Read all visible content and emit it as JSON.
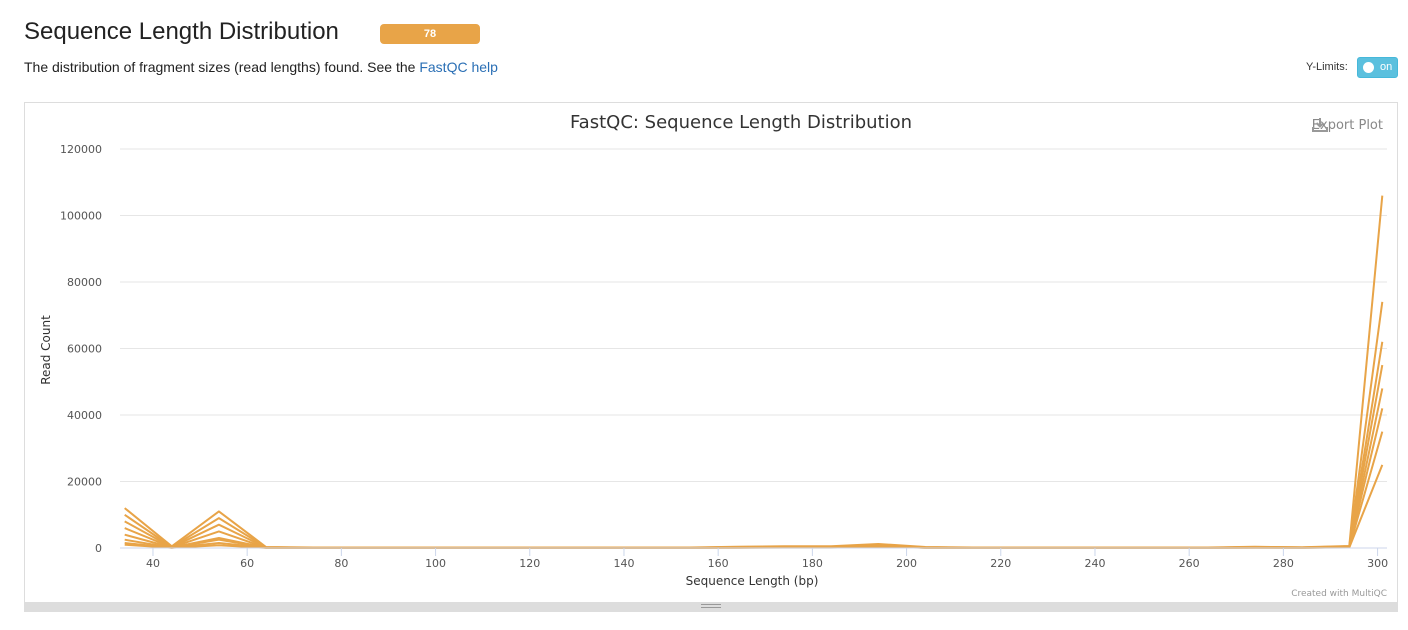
{
  "section": {
    "title": "Sequence Length Distribution",
    "badge": "78",
    "description_prefix": "The distribution of fragment sizes (read lengths) found. See the ",
    "help_link": "FastQC help"
  },
  "controls": {
    "ylimits_label": "Y-Limits:",
    "toggle_label": "on"
  },
  "plot": {
    "export_label": "Export Plot",
    "credit": "Created with MultiQC"
  },
  "colors": {
    "accent": "#e8a448",
    "link": "#2a6fb5",
    "toggle": "#5bc0de"
  },
  "chart_data": {
    "type": "line",
    "title": "FastQC: Sequence Length Distribution",
    "xlabel": "Sequence Length (bp)",
    "ylabel": "Read Count",
    "xlim": [
      33,
      302
    ],
    "ylim": [
      0,
      120000
    ],
    "x_ticks": [
      40,
      60,
      80,
      100,
      120,
      140,
      160,
      180,
      200,
      220,
      240,
      260,
      280,
      300
    ],
    "y_ticks": [
      0,
      20000,
      40000,
      60000,
      80000,
      100000,
      120000
    ],
    "grid": true,
    "x": [
      34,
      44,
      54,
      64,
      74,
      84,
      94,
      104,
      114,
      124,
      134,
      144,
      154,
      164,
      174,
      184,
      194,
      204,
      214,
      224,
      234,
      244,
      254,
      264,
      274,
      284,
      294,
      301
    ],
    "series": [
      {
        "values": [
          12000,
          500,
          11000,
          300,
          150,
          150,
          150,
          150,
          150,
          150,
          150,
          150,
          150,
          350,
          500,
          500,
          1200,
          300,
          150,
          150,
          150,
          150,
          150,
          150,
          350,
          200,
          600,
          106000
        ]
      },
      {
        "values": [
          10000,
          300,
          9000,
          200,
          100,
          100,
          100,
          100,
          100,
          100,
          100,
          100,
          100,
          300,
          400,
          400,
          1000,
          200,
          100,
          100,
          100,
          100,
          100,
          100,
          300,
          150,
          500,
          74000
        ]
      },
      {
        "values": [
          8000,
          250,
          7000,
          150,
          100,
          100,
          100,
          100,
          100,
          100,
          100,
          100,
          100,
          250,
          350,
          350,
          900,
          150,
          100,
          100,
          100,
          100,
          100,
          100,
          250,
          150,
          400,
          62000
        ]
      },
      {
        "values": [
          6000,
          200,
          5000,
          100,
          80,
          80,
          80,
          80,
          80,
          80,
          80,
          80,
          80,
          200,
          300,
          300,
          800,
          120,
          80,
          80,
          80,
          80,
          80,
          80,
          200,
          120,
          350,
          55000
        ]
      },
      {
        "values": [
          4000,
          150,
          3000,
          80,
          60,
          60,
          60,
          60,
          60,
          60,
          60,
          60,
          60,
          150,
          250,
          250,
          700,
          100,
          60,
          60,
          60,
          60,
          60,
          60,
          150,
          100,
          300,
          48000
        ]
      },
      {
        "values": [
          2500,
          100,
          2500,
          60,
          50,
          50,
          50,
          50,
          50,
          50,
          50,
          50,
          50,
          120,
          200,
          200,
          600,
          80,
          50,
          50,
          50,
          50,
          50,
          50,
          120,
          80,
          250,
          42000
        ]
      },
      {
        "values": [
          1500,
          80,
          1500,
          50,
          40,
          40,
          40,
          40,
          40,
          40,
          40,
          40,
          40,
          100,
          150,
          150,
          500,
          60,
          40,
          40,
          40,
          40,
          40,
          40,
          100,
          60,
          200,
          35000
        ]
      },
      {
        "values": [
          1000,
          50,
          800,
          40,
          30,
          30,
          30,
          30,
          30,
          30,
          30,
          30,
          30,
          80,
          120,
          120,
          400,
          50,
          30,
          30,
          30,
          30,
          30,
          30,
          80,
          50,
          150,
          25000
        ]
      }
    ]
  }
}
